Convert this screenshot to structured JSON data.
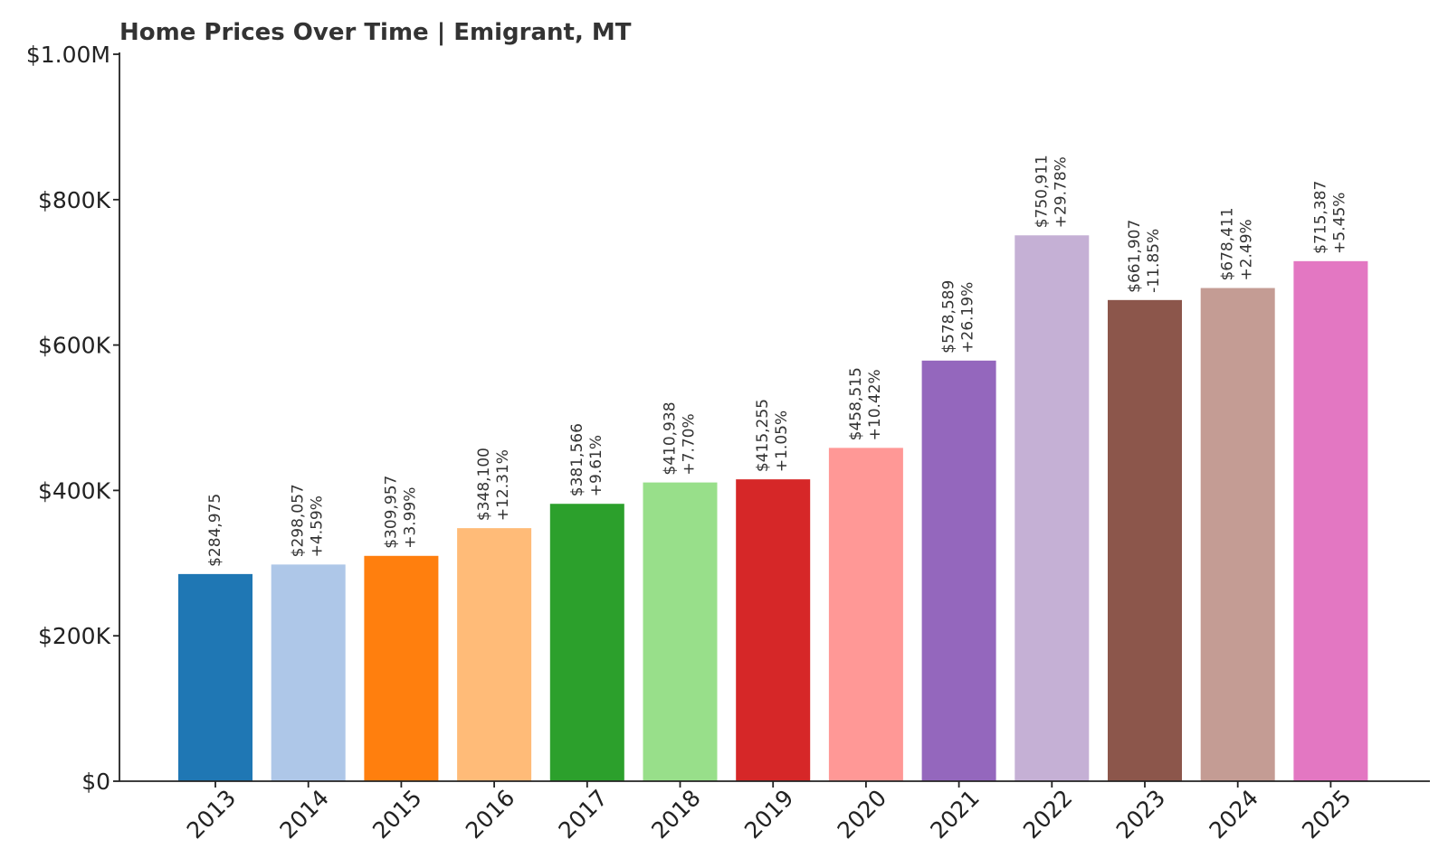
{
  "chart_data": {
    "type": "bar",
    "title": "Home Prices Over Time | Emigrant, MT",
    "xlabel": "",
    "ylabel": "",
    "ylim": [
      0,
      1000000
    ],
    "yticks": [
      {
        "value": 0,
        "label": "$0"
      },
      {
        "value": 200000,
        "label": "$200K"
      },
      {
        "value": 400000,
        "label": "$400K"
      },
      {
        "value": 600000,
        "label": "$600K"
      },
      {
        "value": 800000,
        "label": "$800K"
      },
      {
        "value": 1000000,
        "label": "$1.00M"
      }
    ],
    "grid": false,
    "categories": [
      "2013",
      "2014",
      "2015",
      "2016",
      "2017",
      "2018",
      "2019",
      "2020",
      "2021",
      "2022",
      "2023",
      "2024",
      "2025"
    ],
    "values": [
      284975,
      298057,
      309957,
      348100,
      381566,
      410938,
      415255,
      458515,
      578589,
      750911,
      661907,
      678411,
      715387
    ],
    "value_labels": [
      "$284,975",
      "$298,057",
      "$309,957",
      "$348,100",
      "$381,566",
      "$410,938",
      "$415,255",
      "$458,515",
      "$578,589",
      "$750,911",
      "$661,907",
      "$678,411",
      "$715,387"
    ],
    "change_labels": [
      "",
      "+4.59%",
      "+3.99%",
      "+12.31%",
      "+9.61%",
      "+7.70%",
      "+1.05%",
      "+10.42%",
      "+26.19%",
      "+29.78%",
      "-11.85%",
      "+2.49%",
      "+5.45%"
    ],
    "colors": [
      "#1f77b4",
      "#aec7e8",
      "#ff7f0e",
      "#ffbb78",
      "#2ca02c",
      "#98df8a",
      "#d62728",
      "#ff9896",
      "#9467bd",
      "#c5b0d5",
      "#8c564b",
      "#c49c94",
      "#e377c2"
    ]
  }
}
